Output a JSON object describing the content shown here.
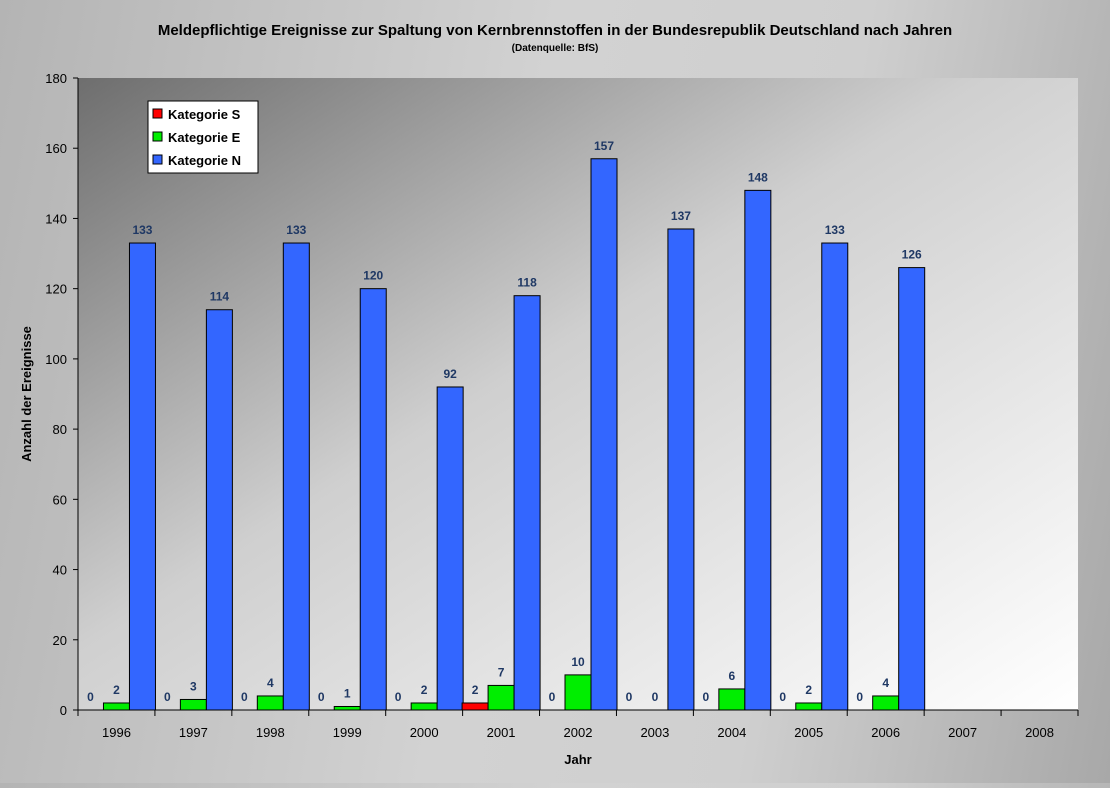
{
  "chart_data": {
    "type": "bar",
    "title": "Meldepflichtige Ereignisse zur Spaltung von Kernbrennstoffen in der Bundesrepublik Deutschland nach Jahren",
    "subtitle": "(Datenquelle: BfS)",
    "xlabel": "Jahr",
    "ylabel": "Anzahl der Ereignisse",
    "ylim": [
      0,
      180
    ],
    "yticks": [
      0,
      20,
      40,
      60,
      80,
      100,
      120,
      140,
      160,
      180
    ],
    "grid": false,
    "legend_position": "top-left",
    "categories": [
      "1996",
      "1997",
      "1998",
      "1999",
      "2000",
      "2001",
      "2002",
      "2003",
      "2004",
      "2005",
      "2006",
      "2007",
      "2008"
    ],
    "series": [
      {
        "name": "Kategorie S",
        "color": "#ff0000",
        "values": [
          0,
          0,
          0,
          0,
          0,
          2,
          0,
          0,
          0,
          0,
          0,
          null,
          null
        ]
      },
      {
        "name": "Kategorie E",
        "color": "#00ee00",
        "values": [
          2,
          3,
          4,
          1,
          2,
          7,
          10,
          0,
          6,
          2,
          4,
          null,
          null
        ]
      },
      {
        "name": "Kategorie N",
        "color": "#3366ff",
        "values": [
          133,
          114,
          133,
          120,
          92,
          118,
          157,
          137,
          148,
          133,
          126,
          null,
          null
        ]
      }
    ],
    "label_color": "#1f3864"
  }
}
